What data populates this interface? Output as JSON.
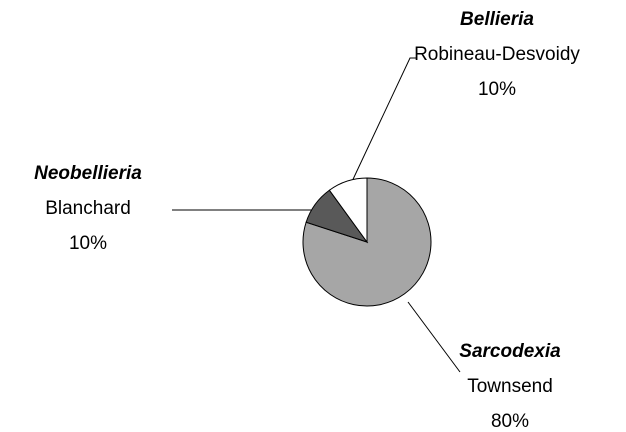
{
  "chart_data": {
    "type": "pie",
    "categories": [
      "Sarcodexia",
      "Neobellieria",
      "Bellieria"
    ],
    "authors": [
      "Townsend",
      "Blanchard",
      "Robineau-Desvoidy"
    ],
    "values": [
      80,
      10,
      10
    ],
    "value_labels": [
      "80%",
      "10%",
      "10%"
    ],
    "colors": [
      "#a6a6a6",
      "#595959",
      "#ffffff"
    ]
  }
}
